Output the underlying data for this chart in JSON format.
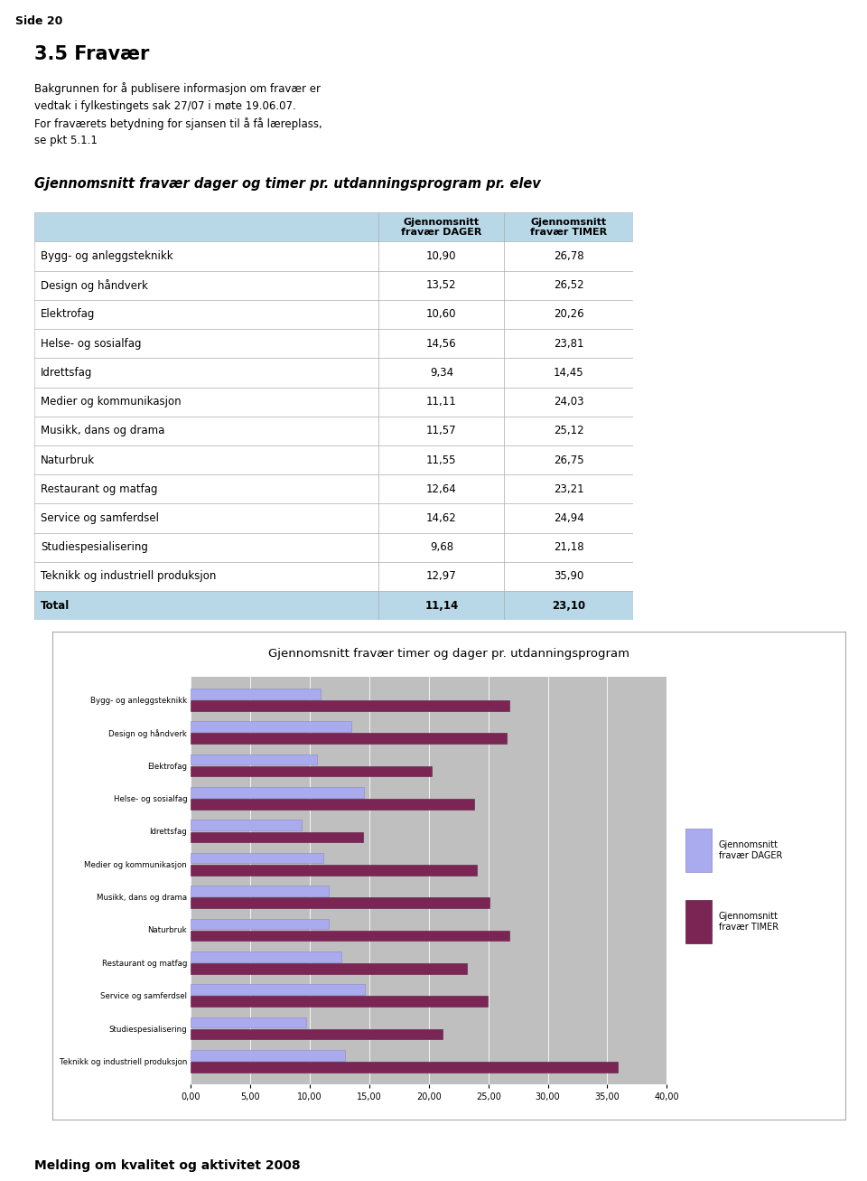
{
  "page_title": "Side 20",
  "section_title": "3.5 Fravær",
  "body_text_lines": [
    "Bakgrunnen for å publisere informasjon om fravær er",
    "vedtak i fylkestingets sak 27/07 i møte 19.06.07.",
    "For fraværets betydning for sjansen til å få læreplass,",
    "se pkt 5.1.1"
  ],
  "table_title": "Gjennomsnitt fravær dager og timer pr. utdanningsprogram pr. elev",
  "col1_header": "Gjennomsnitt\nfravær DAGER",
  "col2_header": "Gjennomsnitt\nfravær TIMER",
  "categories": [
    "Bygg- og anleggsteknikk",
    "Design og håndverk",
    "Elektrofag",
    "Helse- og sosialfag",
    "Idrettsfag",
    "Medier og kommunikasjon",
    "Musikk, dans og drama",
    "Naturbruk",
    "Restaurant og matfag",
    "Service og samferdsel",
    "Studiespesialisering",
    "Teknikk og industriell produksjon",
    "Total"
  ],
  "dager": [
    10.9,
    13.52,
    10.6,
    14.56,
    9.34,
    11.11,
    11.57,
    11.55,
    12.64,
    14.62,
    9.68,
    12.97,
    11.14
  ],
  "timer": [
    26.78,
    26.52,
    20.26,
    23.81,
    14.45,
    24.03,
    25.12,
    26.75,
    23.21,
    24.94,
    21.18,
    35.9,
    23.1
  ],
  "chart_title": "Gjennomsnitt fravær timer og dager pr. utdanningsprogram",
  "bar_color_dager": "#aaaaee",
  "bar_color_timer": "#7b2555",
  "legend_dager": "Gjennomsnitt\nfravær DAGER",
  "legend_timer": "Gjennomsnitt\nfravær TIMER",
  "chart_bg": "#bfbfbf",
  "chart_outer_bg": "#ffffff",
  "page_bg": "#ffffff",
  "header_bg": "#b8d8e8",
  "total_bg": "#b8d8e8",
  "table_line_color": "#aaaaaa",
  "footer_bar_color": "#008080",
  "footer_text": "Melding om kvalitet og aktivitet 2008",
  "top_bar_color": "#f0a500",
  "xticks": [
    0,
    5,
    10,
    15,
    20,
    25,
    30,
    35,
    40
  ],
  "xtick_labels": [
    "0,00",
    "5,00",
    "10,00",
    "15,00",
    "20,00",
    "25,00",
    "30,00",
    "35,00",
    "40,00"
  ]
}
